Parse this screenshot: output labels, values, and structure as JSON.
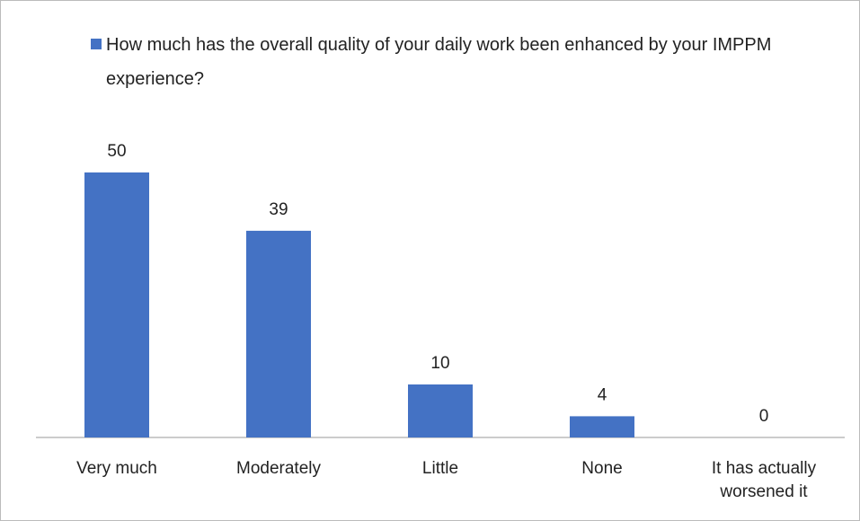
{
  "chart_data": {
    "type": "bar",
    "legend": "top-left",
    "categories": [
      "Very much",
      "Moderately",
      "Little",
      "None",
      "It has actually worsened it"
    ],
    "series": [
      {
        "name": "How much has the overall quality of your daily work been enhanced by your IMPPM experience?",
        "color": "#4472c4",
        "values": [
          50,
          39,
          10,
          4,
          0
        ]
      }
    ]
  }
}
